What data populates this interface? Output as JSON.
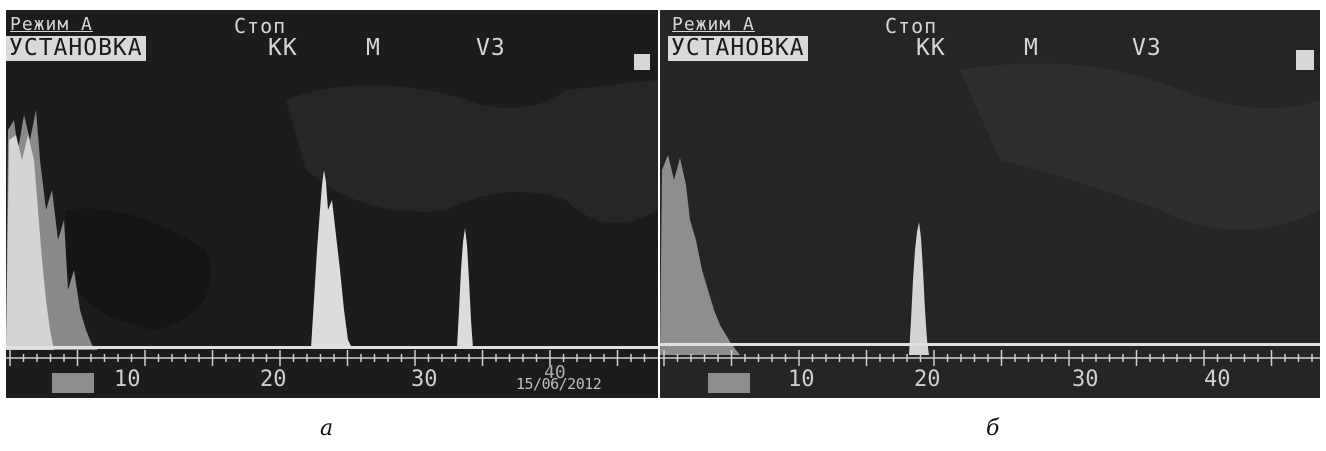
{
  "panels": [
    {
      "id": "a",
      "mode_label": "Режим А",
      "status_label": "Стоп",
      "setup_label": "УСТАНОВКА",
      "kk_label": "КК",
      "m_label": "М",
      "v3_label": "V3",
      "ticks": [
        "10",
        "20",
        "30",
        "40"
      ],
      "date": "15/06/2012",
      "caption": "а"
    },
    {
      "id": "b",
      "mode_label": "Режим А",
      "status_label": "Стоп",
      "setup_label": "УСТАНОВКА",
      "kk_label": "КК",
      "m_label": "М",
      "v3_label": "V3",
      "ticks": [
        "10",
        "20",
        "30",
        "40"
      ],
      "caption": "б"
    }
  ],
  "colors": {
    "screen_bg": "#1d1d1d",
    "signal": "#d9d9d9",
    "baseline": "#e0e0e0"
  }
}
